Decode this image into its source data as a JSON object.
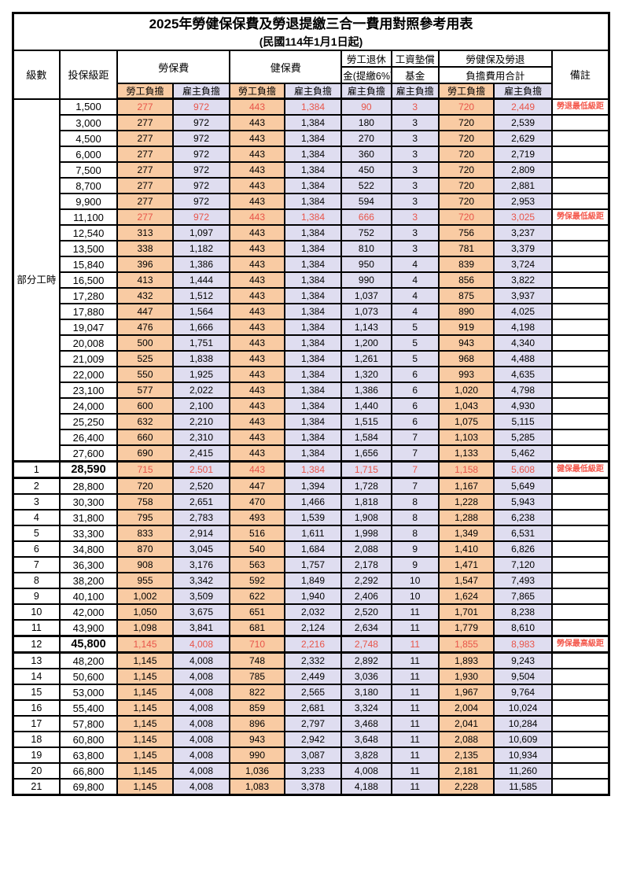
{
  "colors": {
    "employee_fill": "#f9cba3",
    "employer_fill": "#dfddf0",
    "highlight_text": "#e8554a",
    "remark_text": "#f4564a",
    "border": "#000000",
    "background": "#ffffff"
  },
  "table": {
    "title": "2025年勞健保保費及勞退提繳三合一費用對照參考用表",
    "subtitle": "(民國114年1月1日起)",
    "header": {
      "level": "級數",
      "bracket": "投保級距",
      "labor_fee": "勞保費",
      "health_fee": "健保費",
      "pension_line1": "勞工退休",
      "pension_line2": "金(提繳6%)",
      "wage_fund_line1": "工資墊償",
      "wage_fund_line2": "基金",
      "total_line1": "勞健保及勞退",
      "total_line2": "負擔費用合計",
      "remark": "備註",
      "employee_burden": "勞工負擔",
      "employer_burden": "雇主負擔"
    },
    "part_time_label": "部分工時",
    "rows": [
      {
        "level": "",
        "bracket": "1,500",
        "v": [
          "277",
          "972",
          "443",
          "1,384",
          "90",
          "3",
          "720",
          "2,449"
        ],
        "remark": "勞退最低級距",
        "red": true,
        "bold": false
      },
      {
        "level": "",
        "bracket": "3,000",
        "v": [
          "277",
          "972",
          "443",
          "1,384",
          "180",
          "3",
          "720",
          "2,539"
        ],
        "remark": "",
        "red": false,
        "bold": false
      },
      {
        "level": "",
        "bracket": "4,500",
        "v": [
          "277",
          "972",
          "443",
          "1,384",
          "270",
          "3",
          "720",
          "2,629"
        ],
        "remark": "",
        "red": false,
        "bold": false
      },
      {
        "level": "",
        "bracket": "6,000",
        "v": [
          "277",
          "972",
          "443",
          "1,384",
          "360",
          "3",
          "720",
          "2,719"
        ],
        "remark": "",
        "red": false,
        "bold": false
      },
      {
        "level": "",
        "bracket": "7,500",
        "v": [
          "277",
          "972",
          "443",
          "1,384",
          "450",
          "3",
          "720",
          "2,809"
        ],
        "remark": "",
        "red": false,
        "bold": false
      },
      {
        "level": "",
        "bracket": "8,700",
        "v": [
          "277",
          "972",
          "443",
          "1,384",
          "522",
          "3",
          "720",
          "2,881"
        ],
        "remark": "",
        "red": false,
        "bold": false
      },
      {
        "level": "",
        "bracket": "9,900",
        "v": [
          "277",
          "972",
          "443",
          "1,384",
          "594",
          "3",
          "720",
          "2,953"
        ],
        "remark": "",
        "red": false,
        "bold": false
      },
      {
        "level": "",
        "bracket": "11,100",
        "v": [
          "277",
          "972",
          "443",
          "1,384",
          "666",
          "3",
          "720",
          "3,025"
        ],
        "remark": "勞保最低級距",
        "red": true,
        "bold": false
      },
      {
        "level": "",
        "bracket": "12,540",
        "v": [
          "313",
          "1,097",
          "443",
          "1,384",
          "752",
          "3",
          "756",
          "3,237"
        ],
        "remark": "",
        "red": false,
        "bold": false
      },
      {
        "level": "",
        "bracket": "13,500",
        "v": [
          "338",
          "1,182",
          "443",
          "1,384",
          "810",
          "3",
          "781",
          "3,379"
        ],
        "remark": "",
        "red": false,
        "bold": false
      },
      {
        "level": "",
        "bracket": "15,840",
        "v": [
          "396",
          "1,386",
          "443",
          "1,384",
          "950",
          "4",
          "839",
          "3,724"
        ],
        "remark": "",
        "red": false,
        "bold": false
      },
      {
        "level": "",
        "bracket": "16,500",
        "v": [
          "413",
          "1,444",
          "443",
          "1,384",
          "990",
          "4",
          "856",
          "3,822"
        ],
        "remark": "",
        "red": false,
        "bold": false
      },
      {
        "level": "",
        "bracket": "17,280",
        "v": [
          "432",
          "1,512",
          "443",
          "1,384",
          "1,037",
          "4",
          "875",
          "3,937"
        ],
        "remark": "",
        "red": false,
        "bold": false
      },
      {
        "level": "",
        "bracket": "17,880",
        "v": [
          "447",
          "1,564",
          "443",
          "1,384",
          "1,073",
          "4",
          "890",
          "4,025"
        ],
        "remark": "",
        "red": false,
        "bold": false
      },
      {
        "level": "",
        "bracket": "19,047",
        "v": [
          "476",
          "1,666",
          "443",
          "1,384",
          "1,143",
          "5",
          "919",
          "4,198"
        ],
        "remark": "",
        "red": false,
        "bold": false
      },
      {
        "level": "",
        "bracket": "20,008",
        "v": [
          "500",
          "1,751",
          "443",
          "1,384",
          "1,200",
          "5",
          "943",
          "4,340"
        ],
        "remark": "",
        "red": false,
        "bold": false
      },
      {
        "level": "",
        "bracket": "21,009",
        "v": [
          "525",
          "1,838",
          "443",
          "1,384",
          "1,261",
          "5",
          "968",
          "4,488"
        ],
        "remark": "",
        "red": false,
        "bold": false
      },
      {
        "level": "",
        "bracket": "22,000",
        "v": [
          "550",
          "1,925",
          "443",
          "1,384",
          "1,320",
          "6",
          "993",
          "4,635"
        ],
        "remark": "",
        "red": false,
        "bold": false
      },
      {
        "level": "",
        "bracket": "23,100",
        "v": [
          "577",
          "2,022",
          "443",
          "1,384",
          "1,386",
          "6",
          "1,020",
          "4,798"
        ],
        "remark": "",
        "red": false,
        "bold": false
      },
      {
        "level": "",
        "bracket": "24,000",
        "v": [
          "600",
          "2,100",
          "443",
          "1,384",
          "1,440",
          "6",
          "1,043",
          "4,930"
        ],
        "remark": "",
        "red": false,
        "bold": false
      },
      {
        "level": "",
        "bracket": "25,250",
        "v": [
          "632",
          "2,210",
          "443",
          "1,384",
          "1,515",
          "6",
          "1,075",
          "5,115"
        ],
        "remark": "",
        "red": false,
        "bold": false
      },
      {
        "level": "",
        "bracket": "26,400",
        "v": [
          "660",
          "2,310",
          "443",
          "1,384",
          "1,584",
          "7",
          "1,103",
          "5,285"
        ],
        "remark": "",
        "red": false,
        "bold": false
      },
      {
        "level": "",
        "bracket": "27,600",
        "v": [
          "690",
          "2,415",
          "443",
          "1,384",
          "1,656",
          "7",
          "1,133",
          "5,462"
        ],
        "remark": "",
        "red": false,
        "bold": false
      },
      {
        "level": "1",
        "bracket": "28,590",
        "v": [
          "715",
          "2,501",
          "443",
          "1,384",
          "1,715",
          "7",
          "1,158",
          "5,608"
        ],
        "remark": "健保最低級距",
        "red": true,
        "bold": true
      },
      {
        "level": "2",
        "bracket": "28,800",
        "v": [
          "720",
          "2,520",
          "447",
          "1,394",
          "1,728",
          "7",
          "1,167",
          "5,649"
        ],
        "remark": "",
        "red": false,
        "bold": false
      },
      {
        "level": "3",
        "bracket": "30,300",
        "v": [
          "758",
          "2,651",
          "470",
          "1,466",
          "1,818",
          "8",
          "1,228",
          "5,943"
        ],
        "remark": "",
        "red": false,
        "bold": false
      },
      {
        "level": "4",
        "bracket": "31,800",
        "v": [
          "795",
          "2,783",
          "493",
          "1,539",
          "1,908",
          "8",
          "1,288",
          "6,238"
        ],
        "remark": "",
        "red": false,
        "bold": false
      },
      {
        "level": "5",
        "bracket": "33,300",
        "v": [
          "833",
          "2,914",
          "516",
          "1,611",
          "1,998",
          "8",
          "1,349",
          "6,531"
        ],
        "remark": "",
        "red": false,
        "bold": false
      },
      {
        "level": "6",
        "bracket": "34,800",
        "v": [
          "870",
          "3,045",
          "540",
          "1,684",
          "2,088",
          "9",
          "1,410",
          "6,826"
        ],
        "remark": "",
        "red": false,
        "bold": false
      },
      {
        "level": "7",
        "bracket": "36,300",
        "v": [
          "908",
          "3,176",
          "563",
          "1,757",
          "2,178",
          "9",
          "1,471",
          "7,120"
        ],
        "remark": "",
        "red": false,
        "bold": false
      },
      {
        "level": "8",
        "bracket": "38,200",
        "v": [
          "955",
          "3,342",
          "592",
          "1,849",
          "2,292",
          "10",
          "1,547",
          "7,493"
        ],
        "remark": "",
        "red": false,
        "bold": false
      },
      {
        "level": "9",
        "bracket": "40,100",
        "v": [
          "1,002",
          "3,509",
          "622",
          "1,940",
          "2,406",
          "10",
          "1,624",
          "7,865"
        ],
        "remark": "",
        "red": false,
        "bold": false
      },
      {
        "level": "10",
        "bracket": "42,000",
        "v": [
          "1,050",
          "3,675",
          "651",
          "2,032",
          "2,520",
          "11",
          "1,701",
          "8,238"
        ],
        "remark": "",
        "red": false,
        "bold": false
      },
      {
        "level": "11",
        "bracket": "43,900",
        "v": [
          "1,098",
          "3,841",
          "681",
          "2,124",
          "2,634",
          "11",
          "1,779",
          "8,610"
        ],
        "remark": "",
        "red": false,
        "bold": false
      },
      {
        "level": "12",
        "bracket": "45,800",
        "v": [
          "1,145",
          "4,008",
          "710",
          "2,216",
          "2,748",
          "11",
          "1,855",
          "8,983"
        ],
        "remark": "勞保最高級距",
        "red": true,
        "bold": true
      },
      {
        "level": "13",
        "bracket": "48,200",
        "v": [
          "1,145",
          "4,008",
          "748",
          "2,332",
          "2,892",
          "11",
          "1,893",
          "9,243"
        ],
        "remark": "",
        "red": false,
        "bold": false
      },
      {
        "level": "14",
        "bracket": "50,600",
        "v": [
          "1,145",
          "4,008",
          "785",
          "2,449",
          "3,036",
          "11",
          "1,930",
          "9,504"
        ],
        "remark": "",
        "red": false,
        "bold": false
      },
      {
        "level": "15",
        "bracket": "53,000",
        "v": [
          "1,145",
          "4,008",
          "822",
          "2,565",
          "3,180",
          "11",
          "1,967",
          "9,764"
        ],
        "remark": "",
        "red": false,
        "bold": false
      },
      {
        "level": "16",
        "bracket": "55,400",
        "v": [
          "1,145",
          "4,008",
          "859",
          "2,681",
          "3,324",
          "11",
          "2,004",
          "10,024"
        ],
        "remark": "",
        "red": false,
        "bold": false
      },
      {
        "level": "17",
        "bracket": "57,800",
        "v": [
          "1,145",
          "4,008",
          "896",
          "2,797",
          "3,468",
          "11",
          "2,041",
          "10,284"
        ],
        "remark": "",
        "red": false,
        "bold": false
      },
      {
        "level": "18",
        "bracket": "60,800",
        "v": [
          "1,145",
          "4,008",
          "943",
          "2,942",
          "3,648",
          "11",
          "2,088",
          "10,609"
        ],
        "remark": "",
        "red": false,
        "bold": false
      },
      {
        "level": "19",
        "bracket": "63,800",
        "v": [
          "1,145",
          "4,008",
          "990",
          "3,087",
          "3,828",
          "11",
          "2,135",
          "10,934"
        ],
        "remark": "",
        "red": false,
        "bold": false
      },
      {
        "level": "20",
        "bracket": "66,800",
        "v": [
          "1,145",
          "4,008",
          "1,036",
          "3,233",
          "4,008",
          "11",
          "2,181",
          "11,260"
        ],
        "remark": "",
        "red": false,
        "bold": false
      },
      {
        "level": "21",
        "bracket": "69,800",
        "v": [
          "1,145",
          "4,008",
          "1,083",
          "3,378",
          "4,188",
          "11",
          "2,228",
          "11,585"
        ],
        "remark": "",
        "red": false,
        "bold": false
      }
    ]
  }
}
